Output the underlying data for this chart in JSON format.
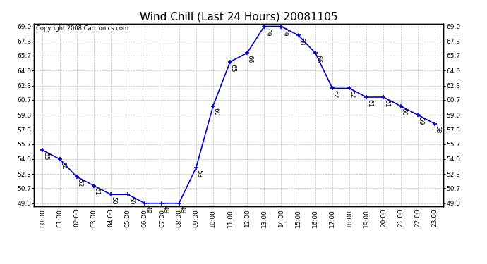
{
  "title": "Wind Chill (Last 24 Hours) 20081105",
  "copyright": "Copyright 2008 Cartronics.com",
  "hours": [
    "00:00",
    "01:00",
    "02:00",
    "03:00",
    "04:00",
    "05:00",
    "06:00",
    "07:00",
    "08:00",
    "09:00",
    "10:00",
    "11:00",
    "12:00",
    "13:00",
    "14:00",
    "15:00",
    "16:00",
    "17:00",
    "18:00",
    "19:00",
    "20:00",
    "21:00",
    "22:00",
    "23:00"
  ],
  "values": [
    55,
    54,
    52,
    51,
    50,
    50,
    49,
    49,
    49,
    53,
    60,
    65,
    66,
    69,
    69,
    68,
    66,
    62,
    62,
    61,
    61,
    60,
    59,
    58
  ],
  "line_color": "#0000cc",
  "marker_color": "#0000cc",
  "bg_color": "#ffffff",
  "plot_bg_color": "#ffffff",
  "grid_color": "#bbbbbb",
  "ylim_min": 49.0,
  "ylim_max": 69.0,
  "ytick_values": [
    49.0,
    50.7,
    52.3,
    54.0,
    55.7,
    57.3,
    59.0,
    60.7,
    62.3,
    64.0,
    65.7,
    67.3,
    69.0
  ],
  "title_fontsize": 11,
  "label_fontsize": 6.5,
  "copyright_fontsize": 6,
  "tick_fontsize": 6.5,
  "figwidth": 6.9,
  "figheight": 3.75,
  "dpi": 100
}
